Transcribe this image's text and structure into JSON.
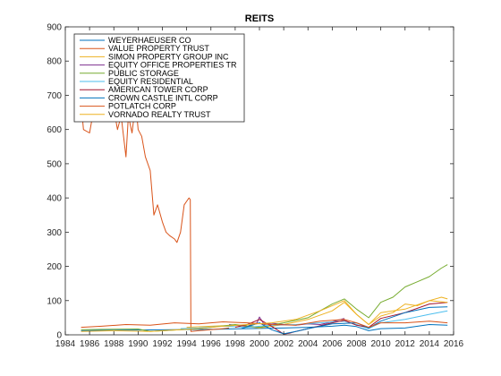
{
  "chart_data": {
    "type": "line",
    "title": "REITS",
    "xlabel": "",
    "ylabel": "",
    "xlim": [
      1984,
      2016
    ],
    "ylim": [
      0,
      900
    ],
    "xticks": [
      "1984",
      "1986",
      "1988",
      "1990",
      "1992",
      "1994",
      "1996",
      "1998",
      "2000",
      "2002",
      "2004",
      "2006",
      "2008",
      "2010",
      "2012",
      "2014",
      "2016"
    ],
    "yticks": [
      "0",
      "100",
      "200",
      "300",
      "400",
      "500",
      "600",
      "700",
      "800",
      "900"
    ],
    "grid": false,
    "legend_position": "top-left",
    "series": [
      {
        "name": "WEYERHAEUSER CO",
        "color": "#0072BD",
        "x": [
          1985.3,
          1987,
          1990,
          1993,
          1996,
          1999,
          2002,
          2004,
          2006,
          2007,
          2008,
          2009,
          2010,
          2012,
          2014,
          2015.5
        ],
        "y": [
          12,
          13,
          14,
          15,
          16,
          18,
          20,
          22,
          25,
          28,
          24,
          12,
          18,
          20,
          30,
          28
        ]
      },
      {
        "name": "VALUE PROPERTY TRUST",
        "color": "#D95319",
        "x": [
          1985.3,
          1985.5,
          1986,
          1986.3,
          1986.5,
          1987,
          1987.5,
          1988,
          1988.3,
          1988.6,
          1989,
          1989.2,
          1989.5,
          1989.8,
          1990,
          1990.3,
          1990.6,
          1991,
          1991.3,
          1991.6,
          1992,
          1992.3,
          1992.6,
          1993,
          1993.2,
          1993.5,
          1993.8,
          1994,
          1994.2,
          1994.3,
          1994.35,
          1995,
          1996,
          1997,
          1997.5
        ],
        "y": [
          680,
          600,
          590,
          650,
          700,
          640,
          700,
          660,
          600,
          640,
          520,
          640,
          590,
          680,
          600,
          580,
          520,
          480,
          350,
          380,
          330,
          300,
          290,
          280,
          270,
          300,
          380,
          390,
          400,
          395,
          10,
          12,
          15,
          18,
          20
        ]
      },
      {
        "name": "SIMON PROPERTY GROUP INC",
        "color": "#EDB120",
        "x": [
          1994,
          1996,
          1998,
          2000,
          2002,
          2004,
          2006,
          2007,
          2008,
          2009,
          2010,
          2011,
          2012,
          2013,
          2014,
          2015,
          2015.5
        ],
        "y": [
          22,
          25,
          28,
          20,
          30,
          45,
          70,
          95,
          60,
          30,
          55,
          65,
          90,
          85,
          100,
          110,
          105
        ]
      },
      {
        "name": "EQUITY OFFICE PROPERTIES TR",
        "color": "#7E2F8E",
        "x": [
          1997.5,
          1998,
          1999,
          1999.8,
          2000,
          2000.4,
          2001,
          2002,
          2003,
          2004,
          2005,
          2006,
          2007
        ],
        "y": [
          30,
          28,
          25,
          35,
          52,
          30,
          34,
          30,
          28,
          32,
          30,
          38,
          48
        ]
      },
      {
        "name": "PUBLIC STORAGE",
        "color": "#77AC30",
        "x": [
          1985.3,
          1987,
          1990,
          1991,
          1993,
          1995,
          1996,
          1998,
          2000,
          2002,
          2004,
          2005,
          2006,
          2007,
          2008,
          2009,
          2010,
          2011,
          2012,
          2013,
          2014,
          2015,
          2015.5
        ],
        "y": [
          15,
          16,
          17,
          10,
          14,
          18,
          22,
          30,
          22,
          35,
          50,
          70,
          90,
          105,
          75,
          50,
          95,
          110,
          140,
          155,
          170,
          195,
          205
        ]
      },
      {
        "name": "EQUITY RESIDENTIAL",
        "color": "#4DBEEE",
        "x": [
          1993.5,
          1995,
          1997,
          1999,
          2001,
          2003,
          2005,
          2007,
          2008,
          2009,
          2010,
          2012,
          2014,
          2015.5
        ],
        "y": [
          18,
          20,
          25,
          22,
          28,
          30,
          35,
          40,
          30,
          18,
          35,
          45,
          60,
          70
        ]
      },
      {
        "name": "AMERICAN TOWER CORP",
        "color": "#A2142F",
        "x": [
          1998,
          1999,
          2000,
          2001,
          2002,
          2002.5,
          2003,
          2004,
          2006,
          2007,
          2008,
          2009,
          2010,
          2012,
          2014,
          2015.5
        ],
        "y": [
          22,
          30,
          45,
          25,
          2,
          5,
          10,
          18,
          35,
          42,
          28,
          22,
          48,
          65,
          90,
          95
        ]
      },
      {
        "name": "CROWN CASTLE INTL CORP",
        "color": "#0072BD",
        "x": [
          1998.5,
          2000,
          2001,
          2002,
          2003,
          2004,
          2006,
          2008,
          2009,
          2010,
          2012,
          2014,
          2015.5
        ],
        "y": [
          18,
          35,
          15,
          3,
          10,
          18,
          32,
          35,
          20,
          40,
          65,
          80,
          82
        ]
      },
      {
        "name": "POTLATCH CORP",
        "color": "#D95319",
        "x": [
          1985.3,
          1987,
          1989,
          1991,
          1993,
          1995,
          1997,
          1999,
          2001,
          2003,
          2005,
          2007,
          2008,
          2009,
          2010,
          2012,
          2014,
          2015.5
        ],
        "y": [
          22,
          25,
          30,
          28,
          35,
          32,
          38,
          35,
          30,
          28,
          40,
          45,
          35,
          22,
          35,
          35,
          40,
          35
        ]
      },
      {
        "name": "VORNADO REALTY TRUST",
        "color": "#EDB120",
        "x": [
          1985.3,
          1988,
          1991,
          1993,
          1995,
          1997,
          1999,
          2001,
          2003,
          2005,
          2007,
          2008,
          2009,
          2010,
          2012,
          2014,
          2015.5
        ],
        "y": [
          10,
          12,
          10,
          14,
          18,
          25,
          30,
          35,
          45,
          70,
          100,
          60,
          30,
          65,
          75,
          100,
          95
        ]
      }
    ]
  }
}
